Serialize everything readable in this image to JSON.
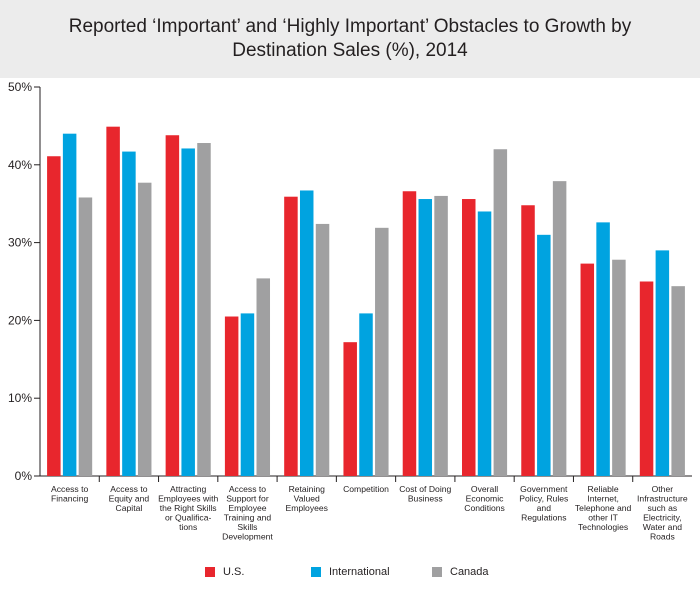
{
  "chart_data": {
    "type": "bar",
    "title_lines": [
      "Reported ‘Important’ and ‘Highly Important’ Obstacles to Growth by",
      "Destination Sales (%), 2014"
    ],
    "categories": [
      [
        "Access to",
        "Financing"
      ],
      [
        "Access to",
        "Equity and",
        "Capital"
      ],
      [
        "Attracting",
        "Employees with",
        "the Right Skills",
        "or Qualifica-",
        "tions"
      ],
      [
        "Access to",
        "Support for",
        "Employee",
        "Training and",
        "Skills",
        "Development"
      ],
      [
        "Retaining",
        "Valued",
        "Employees"
      ],
      [
        "Competition"
      ],
      [
        "Cost of Doing",
        "Business"
      ],
      [
        "Overall",
        "Economic",
        "Conditions"
      ],
      [
        "Government",
        "Policy, Rules",
        "and",
        "Regulations"
      ],
      [
        "Reliable",
        "Internet,",
        "Telephone and",
        "other IT",
        "Technologies"
      ],
      [
        "Other",
        "Infrastructure",
        "such as",
        "Electricity,",
        "Water and",
        "Roads"
      ]
    ],
    "series": [
      {
        "name": "U.S.",
        "color": "#e8262d",
        "values": [
          41.1,
          44.9,
          43.8,
          20.5,
          35.9,
          17.2,
          36.6,
          35.6,
          34.8,
          27.3,
          25.0
        ]
      },
      {
        "name": "International",
        "color": "#00a3e0",
        "values": [
          44.0,
          41.7,
          42.1,
          20.9,
          36.7,
          20.9,
          35.6,
          34.0,
          31.0,
          32.6,
          29.0
        ]
      },
      {
        "name": "Canada",
        "color": "#a0a0a1",
        "values": [
          35.8,
          37.7,
          42.8,
          25.4,
          32.4,
          31.9,
          36.0,
          42.0,
          37.9,
          27.8,
          24.4
        ]
      }
    ],
    "ylim": [
      0,
      50
    ],
    "yticks": [
      0,
      10,
      20,
      30,
      40,
      50
    ],
    "ytick_labels": [
      "0%",
      "10%",
      "20%",
      "30%",
      "40%",
      "50%"
    ],
    "grid": false,
    "legend_position": "bottom"
  }
}
